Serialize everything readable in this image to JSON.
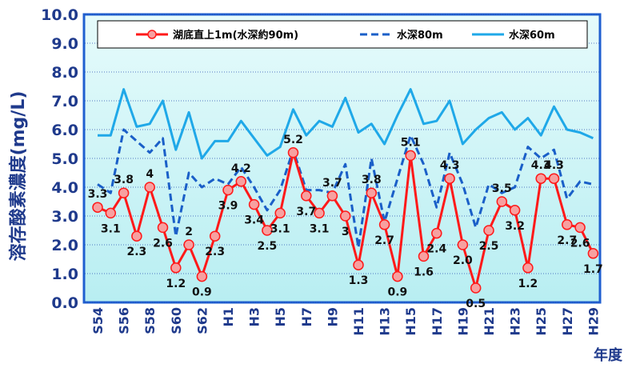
{
  "chart_data": {
    "type": "line",
    "y_label": "溶存酸素濃度(mg/L)",
    "x_label": "年度",
    "categories": [
      "S54",
      null,
      "S56",
      null,
      "S58",
      null,
      "S60",
      null,
      "S62",
      null,
      "H1",
      null,
      "H3",
      null,
      "H5",
      null,
      "H7",
      null,
      "H9",
      null,
      "H11",
      null,
      "H13",
      null,
      "H15",
      null,
      "H17",
      null,
      "H19",
      null,
      "H21",
      null,
      "H23",
      null,
      "H25",
      null,
      "H27",
      null,
      "H29"
    ],
    "ylim": [
      0,
      10
    ],
    "yticks": [
      {
        "value": 0,
        "label": "0.0"
      },
      {
        "value": 1,
        "label": "1.0"
      },
      {
        "value": 2,
        "label": "2.0"
      },
      {
        "value": 3,
        "label": "3.0"
      },
      {
        "value": 4,
        "label": "4.0"
      },
      {
        "value": 5,
        "label": "5.0"
      },
      {
        "value": 6,
        "label": "6.0"
      },
      {
        "value": 7,
        "label": "7.0"
      },
      {
        "value": 8,
        "label": "8.0"
      },
      {
        "value": 9,
        "label": "9.0"
      },
      {
        "value": 10,
        "label": "10.0"
      }
    ],
    "grid": true,
    "series": [
      {
        "name": "湖底直上1m(水深約90m)",
        "color": "#ff1a1a",
        "style": "marker",
        "values": [
          3.3,
          3.1,
          3.8,
          2.3,
          4,
          2.6,
          1.2,
          2,
          0.9,
          2.3,
          3.9,
          4.2,
          3.4,
          2.5,
          3.1,
          5.2,
          3.7,
          3.1,
          3.7,
          3,
          1.3,
          3.8,
          2.7,
          0.9,
          5.1,
          1.6,
          2.4,
          4.3,
          2,
          0.5,
          2.5,
          3.5,
          3.2,
          1.2,
          4.3,
          4.3,
          2.7,
          2.6,
          1.7
        ],
        "value_labels": [
          "3.3",
          "3.1",
          "3.8",
          "2.3",
          "4",
          "2.6",
          "1.2",
          "2",
          "0.9",
          "2.3",
          "3.9",
          "4.2",
          "3.4",
          "2.5",
          "3.1",
          "5.2",
          "3.7",
          "3.1",
          "3.7",
          "3",
          "1.3",
          "3.8",
          "2.7",
          "0.9",
          "5.1",
          "1.6",
          "2.4",
          "4.3",
          "2.0",
          "0.5",
          "2.5",
          "3.5",
          "3.2",
          "1.2",
          "4.3",
          "4.3",
          "2.7",
          "2.6",
          "1.7"
        ]
      },
      {
        "name": "水深80m",
        "color": "#1a5fc8",
        "style": "dashed",
        "values": [
          4.1,
          3.8,
          6.0,
          5.6,
          5.2,
          5.7,
          2.3,
          4.5,
          4.0,
          4.3,
          4.1,
          4.7,
          4.0,
          3.2,
          3.9,
          5.3,
          3.9,
          3.9,
          3.8,
          4.8,
          1.9,
          5.0,
          2.8,
          4.3,
          5.8,
          4.8,
          3.3,
          5.2,
          4.1,
          2.6,
          4.1,
          3.8,
          4.0,
          5.4,
          5.0,
          5.3,
          3.6,
          4.2,
          4.1
        ]
      },
      {
        "name": "水深60m",
        "color": "#1fa8e8",
        "style": "solid",
        "values": [
          5.8,
          5.8,
          7.4,
          6.1,
          6.2,
          7.0,
          5.3,
          6.6,
          5.0,
          5.6,
          5.6,
          6.3,
          5.7,
          5.1,
          5.4,
          6.7,
          5.8,
          6.3,
          6.1,
          7.1,
          5.9,
          6.2,
          5.5,
          6.5,
          7.4,
          6.2,
          6.3,
          7.0,
          5.5,
          6.0,
          6.4,
          6.6,
          6.0,
          6.4,
          5.8,
          6.8,
          6.0,
          5.9,
          5.7
        ]
      }
    ]
  }
}
